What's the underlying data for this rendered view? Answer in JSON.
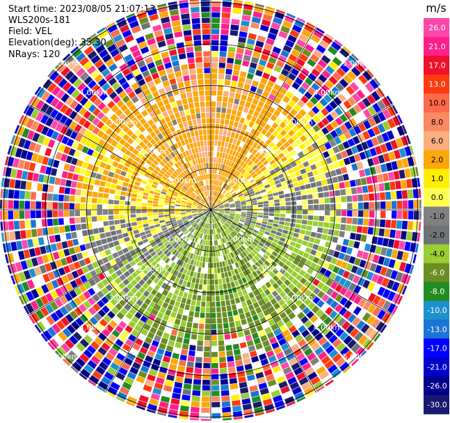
{
  "info": {
    "start_time": "Start time: 2023/08/05 21:07:13",
    "instrument": "WLS200s-181",
    "field": "Field: VEL",
    "elevation": "Elevation(deg): 35.30",
    "nrays": "NRays: 120"
  },
  "chart_data": {
    "type": "heatmap",
    "subtype": "polar-ppi",
    "field": "VEL",
    "units": "m/s",
    "n_rays": 120,
    "range_rings": [
      {
        "label": "1.00km",
        "km": 1
      },
      {
        "label": "2.00km",
        "km": 2
      },
      {
        "label": "3.00km",
        "km": 3
      },
      {
        "label": "4.00km",
        "km": 4
      },
      {
        "label": "5.00km",
        "km": 5
      }
    ],
    "max_range_km": 5.8,
    "azimuth_lines_deg": [
      0,
      30,
      60,
      90,
      120,
      150,
      180,
      210,
      240,
      270,
      300,
      330
    ],
    "pattern_notes": {
      "north": "positive 2 to 10 m/s (yellow/orange)",
      "west_inner": "positive 2 m/s (yellow)",
      "south_southeast": "negative -2 to -8 m/s (greens)",
      "east_inner": "near 0 to -2 m/s (grey / light green)",
      "outer_ranges": "noise spanning full scale"
    },
    "colorbar": {
      "units": "m/s",
      "min": -30,
      "max": 30,
      "ticks": [
        "26.0",
        "21.0",
        "17.0",
        "13.0",
        "10.0",
        "8.0",
        "6.0",
        "2.0",
        "1.0",
        "0.0",
        "-1.0",
        "-2.0",
        "-4.0",
        "-6.0",
        "-8.0",
        "-10.0",
        "-13.0",
        "-17.0",
        "-21.0",
        "-26.0",
        "-30.0"
      ],
      "bins": [
        {
          "lo": 26,
          "hi": 30,
          "color": "#ff47a8"
        },
        {
          "lo": 21,
          "hi": 26,
          "color": "#ff1f8b"
        },
        {
          "lo": 17,
          "hi": 21,
          "color": "#f0102b"
        },
        {
          "lo": 13,
          "hi": 17,
          "color": "#ff3a10"
        },
        {
          "lo": 10,
          "hi": 13,
          "color": "#ff6a4a"
        },
        {
          "lo": 8,
          "hi": 10,
          "color": "#fa8a62"
        },
        {
          "lo": 6,
          "hi": 8,
          "color": "#fcae7e"
        },
        {
          "lo": 2,
          "hi": 6,
          "color": "#fca70c"
        },
        {
          "lo": 1,
          "hi": 2,
          "color": "#ffee00"
        },
        {
          "lo": 0,
          "hi": 1,
          "color": "#ffff4e"
        },
        {
          "lo": -1,
          "hi": 0,
          "color": "#808080"
        },
        {
          "lo": -2,
          "hi": -1,
          "color": "#6d7376"
        },
        {
          "lo": -4,
          "hi": -2,
          "color": "#9acd32"
        },
        {
          "lo": -6,
          "hi": -4,
          "color": "#6b8e23"
        },
        {
          "lo": -8,
          "hi": -6,
          "color": "#228b22"
        },
        {
          "lo": -10,
          "hi": -8,
          "color": "#1e90cf"
        },
        {
          "lo": -13,
          "hi": -10,
          "color": "#1a74d4"
        },
        {
          "lo": -17,
          "hi": -13,
          "color": "#0000ff"
        },
        {
          "lo": -21,
          "hi": -17,
          "color": "#0000cd"
        },
        {
          "lo": -26,
          "hi": -21,
          "color": "#00008b"
        },
        {
          "lo": -30,
          "hi": -26,
          "color": "#191970"
        }
      ]
    }
  }
}
